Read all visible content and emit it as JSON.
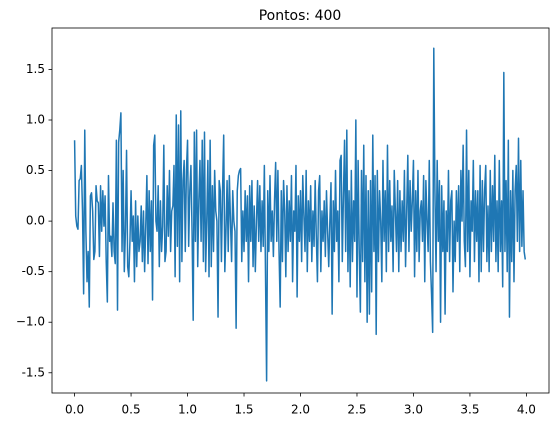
{
  "chart_data": {
    "type": "line",
    "title": "Pontos: 400",
    "x": [
      0,
      0.01,
      0.02,
      0.03,
      0.04,
      0.05,
      0.06,
      0.07,
      0.08,
      0.09,
      0.1,
      0.11,
      0.12,
      0.13,
      0.14,
      0.15,
      0.16,
      0.17,
      0.18,
      0.19,
      0.2,
      0.21,
      0.22,
      0.23,
      0.24,
      0.25,
      0.26,
      0.27,
      0.28,
      0.29,
      0.3,
      0.31,
      0.32,
      0.33,
      0.34,
      0.35,
      0.36,
      0.37,
      0.38,
      0.39,
      0.4,
      0.41,
      0.42,
      0.43,
      0.44,
      0.45,
      0.46,
      0.47,
      0.48,
      0.49,
      0.5,
      0.51,
      0.52,
      0.53,
      0.54,
      0.55,
      0.56,
      0.57,
      0.58,
      0.59,
      0.6,
      0.61,
      0.62,
      0.63,
      0.64,
      0.65,
      0.66,
      0.67,
      0.68,
      0.69,
      0.7,
      0.71,
      0.72,
      0.73,
      0.74,
      0.75,
      0.76,
      0.77,
      0.78,
      0.79,
      0.8,
      0.81,
      0.82,
      0.83,
      0.84,
      0.85,
      0.86,
      0.87,
      0.88,
      0.89,
      0.9,
      0.91,
      0.92,
      0.93,
      0.94,
      0.95,
      0.96,
      0.97,
      0.98,
      0.99,
      1,
      1.01,
      1.02,
      1.03,
      1.04,
      1.05,
      1.06,
      1.07,
      1.08,
      1.09,
      1.1,
      1.11,
      1.12,
      1.13,
      1.14,
      1.15,
      1.16,
      1.17,
      1.18,
      1.19,
      1.2,
      1.21,
      1.22,
      1.23,
      1.24,
      1.25,
      1.26,
      1.27,
      1.28,
      1.29,
      1.3,
      1.31,
      1.32,
      1.33,
      1.34,
      1.35,
      1.36,
      1.37,
      1.38,
      1.39,
      1.4,
      1.41,
      1.42,
      1.43,
      1.44,
      1.45,
      1.46,
      1.47,
      1.48,
      1.49,
      1.5,
      1.51,
      1.52,
      1.53,
      1.54,
      1.55,
      1.56,
      1.57,
      1.58,
      1.59,
      1.6,
      1.61,
      1.62,
      1.63,
      1.64,
      1.65,
      1.66,
      1.67,
      1.68,
      1.69,
      1.7,
      1.71,
      1.72,
      1.73,
      1.74,
      1.75,
      1.76,
      1.77,
      1.78,
      1.79,
      1.8,
      1.81,
      1.82,
      1.83,
      1.84,
      1.85,
      1.86,
      1.87,
      1.88,
      1.89,
      1.9,
      1.91,
      1.92,
      1.93,
      1.94,
      1.95,
      1.96,
      1.97,
      1.98,
      1.99,
      2,
      2.01,
      2.02,
      2.03,
      2.04,
      2.05,
      2.06,
      2.07,
      2.08,
      2.09,
      2.1,
      2.11,
      2.12,
      2.13,
      2.14,
      2.15,
      2.16,
      2.17,
      2.18,
      2.19,
      2.2,
      2.21,
      2.22,
      2.23,
      2.24,
      2.25,
      2.26,
      2.27,
      2.28,
      2.29,
      2.3,
      2.31,
      2.32,
      2.33,
      2.34,
      2.35,
      2.36,
      2.37,
      2.38,
      2.39,
      2.4,
      2.41,
      2.42,
      2.43,
      2.44,
      2.45,
      2.46,
      2.47,
      2.48,
      2.49,
      2.5,
      2.51,
      2.52,
      2.53,
      2.54,
      2.55,
      2.56,
      2.57,
      2.58,
      2.59,
      2.6,
      2.61,
      2.62,
      2.63,
      2.64,
      2.65,
      2.66,
      2.67,
      2.68,
      2.69,
      2.7,
      2.71,
      2.72,
      2.73,
      2.74,
      2.75,
      2.76,
      2.77,
      2.78,
      2.79,
      2.8,
      2.81,
      2.82,
      2.83,
      2.84,
      2.85,
      2.86,
      2.87,
      2.88,
      2.89,
      2.9,
      2.91,
      2.92,
      2.93,
      2.94,
      2.95,
      2.96,
      2.97,
      2.98,
      2.99,
      3,
      3.01,
      3.02,
      3.03,
      3.04,
      3.05,
      3.06,
      3.07,
      3.08,
      3.09,
      3.1,
      3.11,
      3.12,
      3.13,
      3.14,
      3.15,
      3.16,
      3.17,
      3.18,
      3.19,
      3.2,
      3.21,
      3.22,
      3.23,
      3.24,
      3.25,
      3.26,
      3.27,
      3.28,
      3.29,
      3.3,
      3.31,
      3.32,
      3.33,
      3.34,
      3.35,
      3.36,
      3.37,
      3.38,
      3.39,
      3.4,
      3.41,
      3.42,
      3.43,
      3.44,
      3.45,
      3.46,
      3.47,
      3.48,
      3.49,
      3.5,
      3.51,
      3.52,
      3.53,
      3.54,
      3.55,
      3.56,
      3.57,
      3.58,
      3.59,
      3.6,
      3.61,
      3.62,
      3.63,
      3.64,
      3.65,
      3.66,
      3.67,
      3.68,
      3.69,
      3.7,
      3.71,
      3.72,
      3.73,
      3.74,
      3.75,
      3.76,
      3.77,
      3.78,
      3.79,
      3.8,
      3.81,
      3.82,
      3.83,
      3.84,
      3.85,
      3.86,
      3.87,
      3.88,
      3.89,
      3.9,
      3.91,
      3.92,
      3.93,
      3.94,
      3.95,
      3.96,
      3.97,
      3.98,
      3.99
    ],
    "series": [
      {
        "color": "#1f77b4",
        "values": [
          0.8,
          0.05,
          -0.05,
          -0.08,
          0.4,
          0.42,
          0.55,
          0.1,
          -0.72,
          0.9,
          -0.1,
          -0.6,
          -0.3,
          -0.85,
          0.25,
          0.28,
          0.1,
          -0.38,
          -0.3,
          0.35,
          0.2,
          0.18,
          -0.35,
          0.35,
          -0.1,
          0.3,
          -0.05,
          0.25,
          -0.4,
          -0.8,
          0.45,
          -0.2,
          -0.15,
          -0.35,
          0.18,
          -0.3,
          -0.42,
          0.8,
          -0.88,
          0.78,
          0.9,
          1.07,
          -0.3,
          0.5,
          -0.5,
          -0.1,
          0.7,
          -0.45,
          -0.55,
          -0.2,
          0.3,
          -0.2,
          0.05,
          -0.6,
          0.2,
          -0.45,
          0.05,
          -0.3,
          -0.2,
          0.15,
          -0.4,
          0.1,
          -0.5,
          -0.05,
          0.45,
          -0.42,
          0.3,
          -0.3,
          0.2,
          -0.78,
          0.75,
          0.85,
          0,
          -0.1,
          0.35,
          -0.45,
          0.2,
          -0.3,
          -0.05,
          0.75,
          -0.4,
          -0.3,
          0.35,
          -0.15,
          0.5,
          -0.3,
          0.1,
          0.15,
          0.55,
          -0.55,
          1.05,
          -0.25,
          0.95,
          -0.6,
          1.09,
          -0.4,
          0.4,
          0.6,
          -0.3,
          0.5,
          0.8,
          -0.25,
          0.3,
          0.55,
          -0.1,
          -0.98,
          0.88,
          -0.2,
          0.9,
          -0.45,
          0.2,
          0.6,
          -0.2,
          0.8,
          -0.4,
          0.88,
          -0.5,
          0,
          0.6,
          -0.55,
          0.8,
          -0.45,
          0.35,
          -0.3,
          0.5,
          0.1,
          0,
          -0.95,
          0.4,
          0.3,
          -0.4,
          0.3,
          0.85,
          -0.5,
          -0.1,
          0.4,
          -0.3,
          0.45,
          0,
          -0.4,
          0.3,
          0,
          -0.1,
          -1.06,
          0.3,
          0.45,
          0.5,
          0.52,
          -0.4,
          0.1,
          -0.3,
          0.3,
          -0.2,
          0.25,
          -0.6,
          0.35,
          -0.2,
          0.4,
          -0.45,
          0.15,
          -0.5,
          0,
          0.4,
          -0.2,
          0.35,
          -0.3,
          0.2,
          -0.25,
          0.55,
          -0.5,
          -1.58,
          0.3,
          -0.3,
          0.45,
          -0.2,
          0.1,
          -0.35,
          0.2,
          0.58,
          -0.2,
          0.5,
          -0.3,
          -0.85,
          0.3,
          -0.4,
          0.4,
          0.1,
          -0.55,
          0.35,
          -0.3,
          0.2,
          -0.2,
          0.45,
          -0.6,
          0.1,
          -0.1,
          0.55,
          -0.75,
          0.25,
          -0.2,
          0.3,
          -0.4,
          0.45,
          0.05,
          -0.3,
          0.5,
          -0.5,
          0.2,
          -0.2,
          0.35,
          -0.4,
          0.1,
          -0.25,
          0.4,
          -0.15,
          -0.6,
          0.3,
          0.45,
          -0.5,
          0.1,
          -0.2,
          0.2,
          -0.35,
          0.3,
          -0.1,
          -0.45,
          0,
          0.38,
          -0.92,
          0.2,
          -0.3,
          0.5,
          -0.2,
          0.1,
          -0.6,
          0.6,
          0.65,
          -0.4,
          0.25,
          0.8,
          -0.3,
          0.9,
          -0.5,
          0.3,
          -0.65,
          0.5,
          -0.4,
          0.2,
          -0.2,
          1,
          -0.75,
          0.6,
          -0.3,
          -0.9,
          0.5,
          -0.4,
          0.75,
          -0.6,
          0.45,
          -1,
          0.3,
          -0.92,
          0.4,
          -0.7,
          0.85,
          -0.3,
          0.45,
          -1.12,
          0.5,
          -0.4,
          0.3,
          0,
          -0.6,
          0.6,
          -0.2,
          0.3,
          -0.5,
          0.75,
          -0.3,
          0.4,
          -0.2,
          0.15,
          -0.5,
          0.5,
          0.1,
          -0.3,
          0.4,
          -0.5,
          0.3,
          -0.3,
          0.2,
          -0.2,
          0.5,
          -0.45,
          0.1,
          0.65,
          -0.3,
          0.4,
          -0.1,
          0.2,
          0.6,
          -0.55,
          0.3,
          -0.3,
          0.5,
          -0.4,
          0.1,
          0.2,
          -0.2,
          0.45,
          -0.6,
          0.4,
          0,
          -0.3,
          0.6,
          -0.4,
          -0.72,
          -1.1,
          1.71,
          0.3,
          -0.5,
          0.6,
          -0.2,
          0.4,
          -1,
          0.35,
          -0.3,
          0.2,
          -0.92,
          0.1,
          -0.3,
          0.5,
          -0.4,
          0.2,
          0.3,
          -0.7,
          0,
          -0.4,
          0.3,
          -0.2,
          0.35,
          -0.5,
          0.5,
          0,
          0.75,
          -0.2,
          -0.45,
          0.9,
          -0.3,
          0.5,
          -0.55,
          0.2,
          -0.1,
          0.6,
          -0.4,
          0.3,
          -0.2,
          0.3,
          -0.6,
          0.55,
          -0.5,
          0.4,
          -0.3,
          0.3,
          0.55,
          -0.4,
          0.15,
          -0.5,
          0.5,
          -0.3,
          0.35,
          -0.2,
          0.65,
          -0.4,
          0.2,
          -0.5,
          0.6,
          -0.3,
          0.2,
          -0.65,
          1.47,
          -0.3,
          0.4,
          -0.5,
          0.8,
          -0.95,
          0.3,
          -0.4,
          0.5,
          -0.6,
          0.3,
          0.55,
          -0.2,
          0.82,
          -0.3,
          0.6,
          -0.25,
          0.3,
          -0.3,
          -0.38
        ]
      }
    ],
    "xlim": [
      -0.2,
      4.2
    ],
    "ylim": [
      -1.7,
      1.91
    ],
    "xticks": [
      {
        "value": 0,
        "label": "0.0"
      },
      0.5,
      {
        "value": 1,
        "label": "1.0"
      },
      1.5,
      {
        "value": 2,
        "label": "2.0"
      },
      2.5,
      {
        "value": 3,
        "label": "3.0"
      },
      3.5,
      {
        "value": 4,
        "label": "4.0"
      }
    ],
    "yticks": [
      -1.5,
      {
        "value": -1,
        "label": "−1.0"
      },
      -0.5,
      {
        "value": 0,
        "label": "0.0"
      },
      0.5,
      {
        "value": 1,
        "label": "1.0"
      },
      1.5
    ],
    "grid": false
  }
}
